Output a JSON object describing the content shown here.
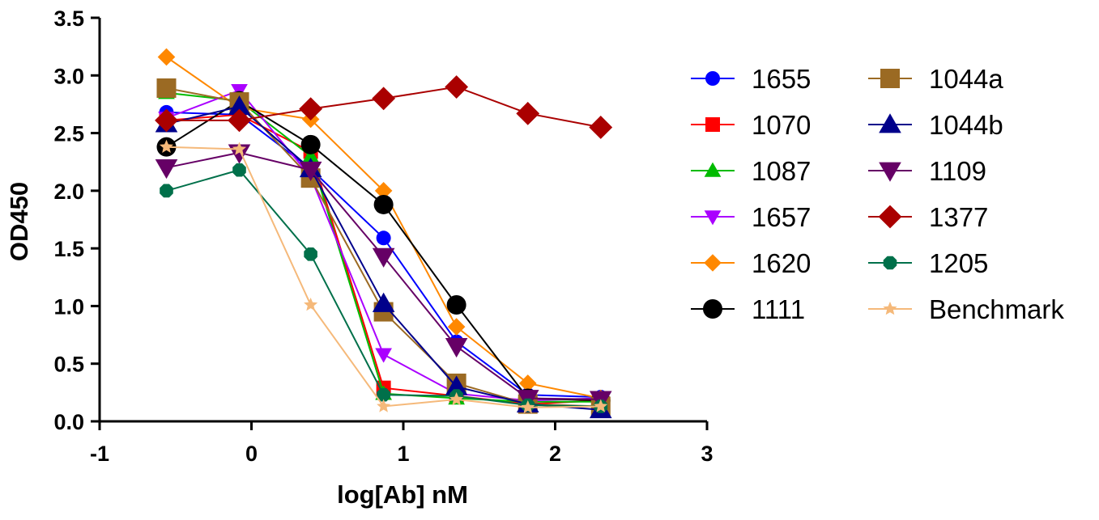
{
  "chart_data": {
    "type": "line",
    "title": "",
    "xlabel": "log[Ab] nM",
    "ylabel": "OD450",
    "xlim": [
      -1,
      3
    ],
    "ylim": [
      0,
      3.5
    ],
    "x_ticks": [
      -1,
      0,
      1,
      2,
      3
    ],
    "x_tick_labels": [
      "-1",
      "0",
      "1",
      "2",
      "3"
    ],
    "y_ticks": [
      0,
      0.5,
      1,
      1.5,
      2,
      2.5,
      3,
      3.5
    ],
    "y_tick_labels": [
      "0.0",
      "0.5",
      "1.0",
      "1.5",
      "2.0",
      "2.5",
      "3.0",
      "3.5"
    ],
    "grid": false,
    "legend_position": "right",
    "x": [
      -0.56,
      -0.08,
      0.39,
      0.87,
      1.35,
      1.82,
      2.3
    ],
    "series": [
      {
        "name": "1655",
        "color": "#0000ff",
        "marker": "circle",
        "values": [
          2.68,
          2.66,
          2.19,
          1.59,
          0.69,
          0.23,
          0.21
        ]
      },
      {
        "name": "1070",
        "color": "#ff0000",
        "marker": "square",
        "values": [
          2.61,
          2.66,
          2.34,
          0.29,
          0.22,
          0.15,
          0.18
        ]
      },
      {
        "name": "1087",
        "color": "#00bb00",
        "marker": "triangle-up",
        "values": [
          2.85,
          2.78,
          2.3,
          0.24,
          0.2,
          0.17,
          0.17
        ]
      },
      {
        "name": "1657",
        "color": "#aa00ff",
        "marker": "triangle-down",
        "values": [
          2.63,
          2.87,
          2.12,
          0.58,
          0.24,
          0.18,
          0.2
        ]
      },
      {
        "name": "1620",
        "color": "#ff8800",
        "marker": "diamond",
        "values": [
          3.16,
          2.72,
          2.62,
          2.0,
          0.82,
          0.33,
          0.2
        ]
      },
      {
        "name": "1111",
        "color": "#000000",
        "marker": "circle-big",
        "values": [
          2.38,
          2.78,
          2.4,
          1.88,
          1.01,
          0.2,
          0.18
        ]
      },
      {
        "name": "1044a",
        "color": "#9b6a23",
        "marker": "square-big",
        "values": [
          2.89,
          2.77,
          2.11,
          0.95,
          0.33,
          0.15,
          0.13
        ]
      },
      {
        "name": "1044b",
        "color": "#00008b",
        "marker": "triangle-up-big",
        "values": [
          2.58,
          2.73,
          2.19,
          1.02,
          0.3,
          0.15,
          0.1
        ]
      },
      {
        "name": "1109",
        "color": "#660066",
        "marker": "triangle-down-big",
        "values": [
          2.2,
          2.33,
          2.18,
          1.43,
          0.65,
          0.2,
          0.19
        ]
      },
      {
        "name": "1377",
        "color": "#aa0000",
        "marker": "diamond-big",
        "values": [
          2.61,
          2.61,
          2.71,
          2.8,
          2.9,
          2.67,
          2.55
        ]
      },
      {
        "name": "1205",
        "color": "#00704a",
        "marker": "octagon",
        "values": [
          2.0,
          2.18,
          1.45,
          0.23,
          0.22,
          0.14,
          0.13
        ]
      },
      {
        "name": "Benchmark",
        "color": "#f5b97a",
        "marker": "star",
        "values": [
          2.38,
          2.36,
          1.01,
          0.13,
          0.19,
          0.12,
          0.13
        ]
      }
    ]
  }
}
